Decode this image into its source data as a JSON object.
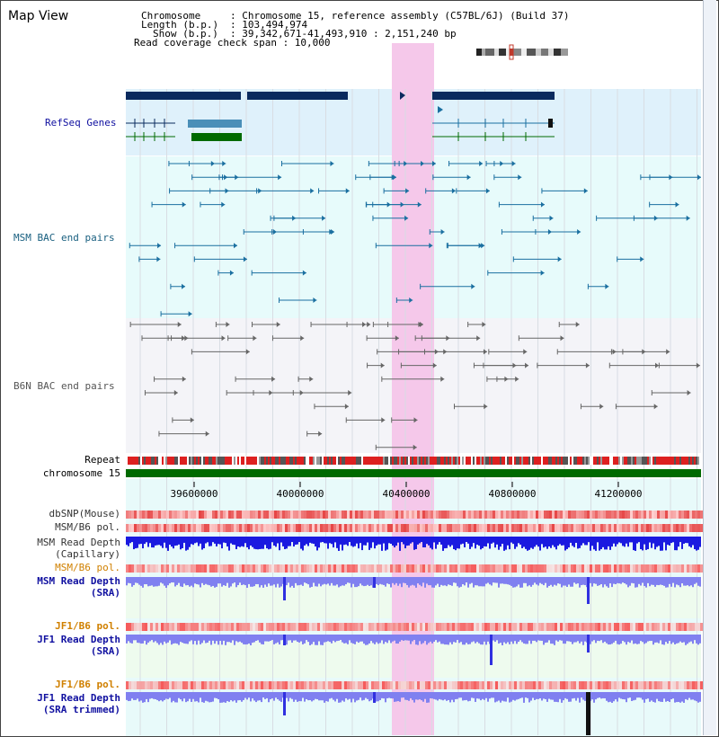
{
  "title": "Map View",
  "header": {
    "chromosome_key": "Chromosome",
    "chromosome_val": ": Chromosome 15, reference assembly (C57BL/6J) (Build 37)",
    "length_key": "Length (b.p.)",
    "length_val": ": 103,494,974",
    "show_key": "Show (b.p.)",
    "show_val": ": 39,342,671-41,493,910 : 2,151,240 bp",
    "span_line": "Read coverage check span : 10,000"
  },
  "tracks": {
    "refseq": "RefSeq Genes",
    "msm_bac": "MSM BAC end pairs",
    "b6n_bac": "B6N BAC end pairs",
    "repeat": "Repeat",
    "chromosome": "chromosome 15",
    "dbsnp": "dbSNP(Mouse)",
    "msm_b6_pol_1": "MSM/B6 pol.",
    "msm_read_cap_1": "MSM Read Depth",
    "msm_read_cap_2": "(Capillary)",
    "msm_b6_pol_2": "MSM/B6 pol.",
    "msm_read_sra_1": "MSM Read Depth",
    "msm_read_sra_2": "(SRA)",
    "jf1_b6_pol_1": "JF1/B6 pol.",
    "jf1_read_sra_1": "JF1 Read Depth",
    "jf1_read_sra_2": "(SRA)",
    "jf1_b6_pol_2": "JF1/B6 pol.",
    "jf1_trim_1": "JF1 Read Depth",
    "jf1_trim_2": "(SRA trimmed)"
  },
  "axis": {
    "ticks": [
      "39600000",
      "40000000",
      "40400000",
      "40800000",
      "41200000"
    ]
  },
  "colors": {
    "highlight": "#f5c8ea",
    "refseq_bg": "#dff1fb",
    "msm_bg": "#e7fbfb",
    "b6n_bg": "#f4f4f8",
    "navy": "#0a2a5e",
    "teal": "#1a6fa0",
    "green": "#006a00",
    "gray": "#666666",
    "label_blue": "#1010a0",
    "label_teal": "#1a6080",
    "label_orange": "#d08000",
    "depth_blue": "#1a1ae0",
    "depth_light": "#8080f0"
  }
}
